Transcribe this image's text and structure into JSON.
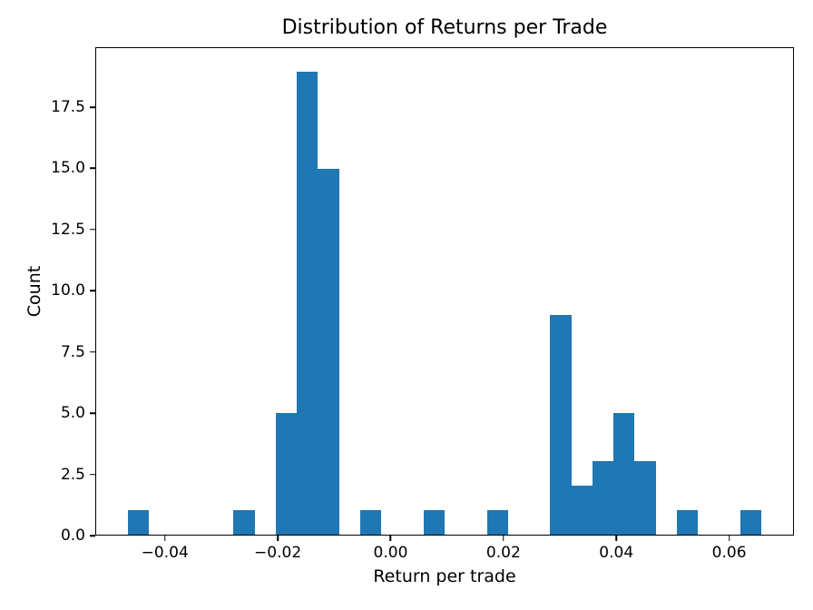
{
  "chart_data": {
    "type": "bar",
    "subtype": "histogram",
    "title": "Distribution of Returns per Trade",
    "xlabel": "Return per trade",
    "ylabel": "Count",
    "bar_color": "#1f77b4",
    "spine_color": "#000000",
    "background_color": "#ffffff",
    "grid": false,
    "legend": false,
    "n_bins": 30,
    "bin_start": -0.04671,
    "bin_width": 0.003752,
    "counts": [
      1,
      0,
      0,
      0,
      0,
      1,
      0,
      5,
      19,
      15,
      0,
      1,
      0,
      0,
      1,
      0,
      0,
      1,
      0,
      0,
      9,
      2,
      3,
      5,
      3,
      0,
      1,
      0,
      0,
      1
    ],
    "xlim": [
      -0.052338,
      0.071478
    ],
    "ylim": [
      0,
      19.95
    ],
    "x_ticks": [
      {
        "value": -0.04,
        "label": "−0.04"
      },
      {
        "value": -0.02,
        "label": "−0.02"
      },
      {
        "value": 0.0,
        "label": "0.00"
      },
      {
        "value": 0.02,
        "label": "0.02"
      },
      {
        "value": 0.04,
        "label": "0.04"
      },
      {
        "value": 0.06,
        "label": "0.06"
      }
    ],
    "y_ticks": [
      {
        "value": 0.0,
        "label": "0.0"
      },
      {
        "value": 2.5,
        "label": "2.5"
      },
      {
        "value": 5.0,
        "label": "5.0"
      },
      {
        "value": 7.5,
        "label": "7.5"
      },
      {
        "value": 10.0,
        "label": "10.0"
      },
      {
        "value": 12.5,
        "label": "12.5"
      },
      {
        "value": 15.0,
        "label": "15.0"
      },
      {
        "value": 17.5,
        "label": "17.5"
      }
    ]
  }
}
